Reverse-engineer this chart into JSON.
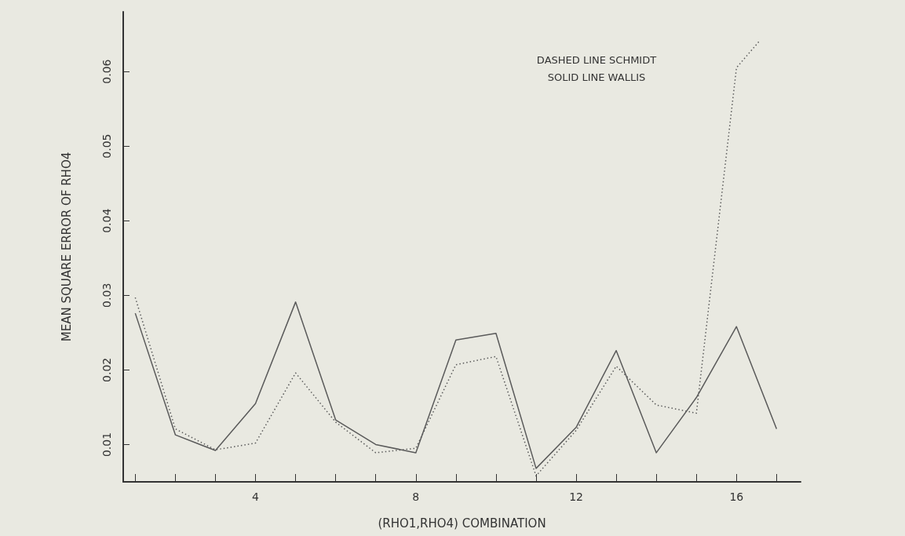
{
  "chart_data": {
    "type": "line",
    "xlabel": "(RHO1,RHO4) COMBINATION",
    "ylabel": "MEAN SQUARE ERROR OF RHO4",
    "annotations": [
      "DASHED LINE SCHMIDT",
      "SOLID LINE WALLIS"
    ],
    "xlim": [
      0.7,
      17.6
    ],
    "xticks": [
      {
        "value": 1,
        "label": null
      },
      {
        "value": 2,
        "label": null
      },
      {
        "value": 3,
        "label": null
      },
      4,
      {
        "value": 5,
        "label": null
      },
      {
        "value": 6,
        "label": null
      },
      {
        "value": 7,
        "label": null
      },
      8,
      {
        "value": 9,
        "label": null
      },
      {
        "value": 10,
        "label": null
      },
      {
        "value": 11,
        "label": null
      },
      12,
      {
        "value": 13,
        "label": null
      },
      {
        "value": 14,
        "label": null
      },
      {
        "value": 15,
        "label": null
      },
      16,
      {
        "value": 17,
        "label": null
      }
    ],
    "ylim": [
      0.005,
      0.068
    ],
    "yticks": [
      0.01,
      0.02,
      0.03,
      0.04,
      0.05,
      0.06
    ],
    "grid": false,
    "marker": "none",
    "series": [
      {
        "color": "#5a5a5a",
        "line_style": "dotted",
        "x": [
          1,
          2,
          3,
          4,
          5,
          6,
          7,
          8,
          9,
          10,
          11,
          12,
          13,
          14,
          15,
          16,
          16.56
        ],
        "values": [
          0.0297,
          0.0121,
          0.0093,
          0.0102,
          0.0196,
          0.013,
          0.0089,
          0.0095,
          0.0207,
          0.0218,
          0.0058,
          0.0119,
          0.0205,
          0.0153,
          0.0142,
          0.0605,
          0.064
        ]
      },
      {
        "color": "#5a5a5a",
        "line_style": "solid",
        "x": [
          1,
          2,
          3,
          4,
          5,
          6,
          7,
          8,
          9,
          10,
          11,
          12,
          13,
          14,
          15,
          16,
          17
        ],
        "values": [
          0.0276,
          0.0113,
          0.0092,
          0.0155,
          0.0291,
          0.0133,
          0.01,
          0.0089,
          0.024,
          0.0249,
          0.0068,
          0.0123,
          0.0226,
          0.0089,
          0.0163,
          0.0258,
          0.0121
        ]
      }
    ]
  }
}
